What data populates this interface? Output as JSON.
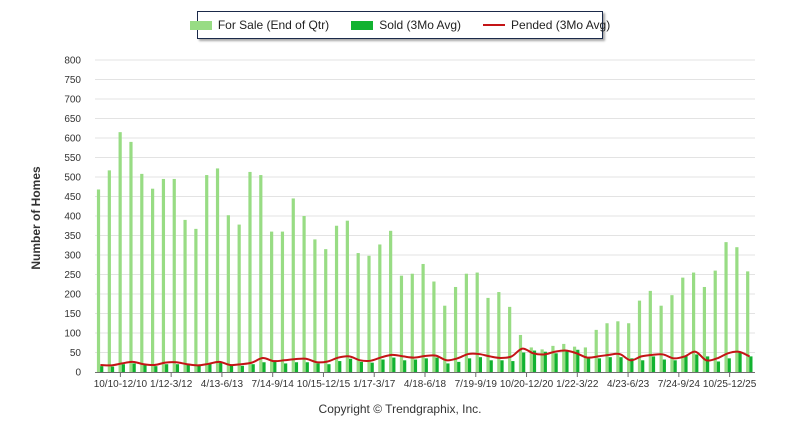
{
  "legend": {
    "for_sale": "For Sale (End of Qtr)",
    "sold": "Sold (3Mo Avg)",
    "pended": "Pended (3Mo Avg)"
  },
  "footer": "Copyright © Trendgraphix, Inc.",
  "colors": {
    "for_sale": "#98dc84",
    "sold": "#12b230",
    "pended": "#c41416",
    "grid": "#e3e3e3"
  },
  "chart_data": {
    "type": "bar",
    "title": "",
    "xlabel": "",
    "ylabel": "Number of Homes",
    "ylim": [
      0,
      800
    ],
    "yticks": [
      0,
      50,
      100,
      150,
      200,
      250,
      300,
      350,
      400,
      450,
      500,
      550,
      600,
      650,
      700,
      750,
      800
    ],
    "x_tick_labels": [
      "10/10-12/10",
      "1/12-3/12",
      "4/13-6/13",
      "7/14-9/14",
      "10/15-12/15",
      "1/17-3/17",
      "4/18-6/18",
      "7/19-9/19",
      "10/20-12/20",
      "1/22-3/22",
      "4/23-6/23",
      "7/24-9/24",
      "10/25-12/25"
    ],
    "series": [
      {
        "name": "For Sale (End of Qtr)",
        "kind": "bar",
        "values": [
          468,
          517,
          615,
          590,
          508,
          470,
          495,
          495,
          390,
          367,
          505,
          522,
          402,
          378,
          513,
          505,
          360,
          360,
          445,
          400,
          340,
          315,
          375,
          388,
          305,
          298,
          327,
          362,
          247,
          252,
          277,
          232,
          170,
          218,
          252,
          255,
          190,
          205,
          167,
          95,
          63,
          58,
          67,
          72,
          65,
          63,
          108,
          125,
          130,
          125,
          183,
          208,
          170,
          197,
          242,
          255,
          218,
          260,
          333,
          320,
          258
        ]
      },
      {
        "name": "Sold (3Mo Avg)",
        "kind": "bar",
        "values": [
          15,
          14,
          20,
          22,
          18,
          15,
          20,
          20,
          18,
          16,
          22,
          24,
          18,
          16,
          20,
          25,
          30,
          22,
          25,
          25,
          22,
          20,
          28,
          34,
          26,
          24,
          32,
          37,
          30,
          32,
          35,
          37,
          22,
          26,
          35,
          38,
          30,
          30,
          28,
          50,
          55,
          52,
          48,
          55,
          57,
          35,
          35,
          38,
          38,
          35,
          30,
          40,
          32,
          30,
          42,
          45,
          40,
          27,
          35,
          50,
          40
        ]
      },
      {
        "name": "Pended (3Mo Avg)",
        "kind": "line",
        "values": [
          18,
          17,
          22,
          26,
          20,
          18,
          24,
          25,
          20,
          17,
          21,
          26,
          18,
          20,
          24,
          36,
          28,
          30,
          33,
          34,
          25,
          27,
          37,
          40,
          30,
          29,
          38,
          44,
          40,
          37,
          41,
          42,
          30,
          35,
          46,
          46,
          40,
          36,
          40,
          60,
          48,
          45,
          52,
          55,
          48,
          37,
          40,
          44,
          46,
          30,
          40,
          44,
          45,
          35,
          40,
          52,
          30,
          35,
          48,
          52,
          40
        ]
      }
    ]
  }
}
